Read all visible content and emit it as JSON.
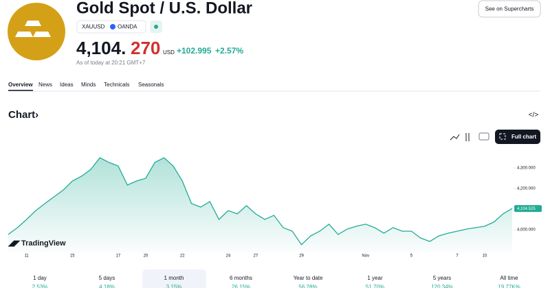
{
  "header": {
    "title": "Gold Spot / U.S. Dollar",
    "symbol": "XAUUSD",
    "exchange": "OANDA",
    "price_main": "4,104.",
    "price_tail": "270",
    "currency": "USD",
    "change": "+102.995",
    "change_percent": "+2.57%",
    "timestamp": "As of today at 20:21 GMT+7",
    "supercharts_button": "See on Supercharts"
  },
  "tabs": [
    "Overview",
    "News",
    "Ideas",
    "Minds",
    "Technicals",
    "Seasonals"
  ],
  "section": {
    "title": "Chart›",
    "full_chart_button": "Full chart",
    "brand": "TradingView"
  },
  "chart_data": {
    "type": "line",
    "color": "#22ab94",
    "values": [
      3977,
      4010,
      4050,
      4093,
      4127,
      4160,
      4193,
      4237,
      4260,
      4293,
      4350,
      4327,
      4310,
      4217,
      4237,
      4250,
      4327,
      4350,
      4310,
      4237,
      4127,
      4110,
      4137,
      4050,
      4093,
      4077,
      4117,
      4077,
      4050,
      4070,
      4010,
      3993,
      3927,
      3970,
      3993,
      4027,
      3977,
      4003,
      4017,
      4027,
      4010,
      3983,
      4010,
      3993,
      3993,
      3960,
      3943,
      3970,
      3983,
      3993,
      4003,
      4010,
      4017,
      4037,
      4077,
      4103
    ],
    "xlim": [
      0,
      55
    ],
    "xticks": [
      {
        "value": 2,
        "label": "11"
      },
      {
        "value": 7,
        "label": "15"
      },
      {
        "value": 12,
        "label": "17"
      },
      {
        "value": 15,
        "label": "20"
      },
      {
        "value": 19,
        "label": "22"
      },
      {
        "value": 24,
        "label": "24"
      },
      {
        "value": 27,
        "label": "27"
      },
      {
        "value": 32,
        "label": "29"
      },
      {
        "value": 39,
        "label": "Nov"
      },
      {
        "value": 44,
        "label": "5"
      },
      {
        "value": 49,
        "label": "7"
      },
      {
        "value": 52,
        "label": "10"
      }
    ],
    "ylim": [
      3890,
      4400
    ],
    "yticks": [
      {
        "value": 4000,
        "label": "4,000.000"
      },
      {
        "value": 4200,
        "label": "4,200.000"
      },
      {
        "value": 4300,
        "label": "4,300.000"
      }
    ],
    "current_label": "4,104.525"
  },
  "periods": [
    {
      "label": "1 day",
      "change": "2.53%"
    },
    {
      "label": "5 days",
      "change": "4.18%"
    },
    {
      "label": "1 month",
      "change": "3.15%"
    },
    {
      "label": "6 months",
      "change": "26.15%"
    },
    {
      "label": "Year to date",
      "change": "56.28%"
    },
    {
      "label": "1 year",
      "change": "51.70%"
    },
    {
      "label": "5 years",
      "change": "120.34%"
    },
    {
      "label": "All time",
      "change": "19.77K%"
    }
  ]
}
